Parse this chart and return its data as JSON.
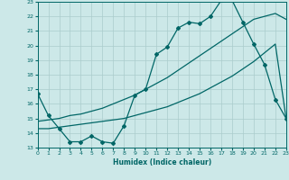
{
  "title": "",
  "xlabel": "Humidex (Indice chaleur)",
  "bg_color": "#cce8e8",
  "line_color": "#006666",
  "grid_color": "#aacccc",
  "ylim": [
    13,
    23
  ],
  "xlim": [
    0,
    23
  ],
  "yticks": [
    13,
    14,
    15,
    16,
    17,
    18,
    19,
    20,
    21,
    22,
    23
  ],
  "xticks": [
    0,
    1,
    2,
    3,
    4,
    5,
    6,
    7,
    8,
    9,
    10,
    11,
    12,
    13,
    14,
    15,
    16,
    17,
    18,
    19,
    20,
    21,
    22,
    23
  ],
  "line1_x": [
    0,
    1,
    2,
    3,
    4,
    5,
    6,
    7,
    8,
    9,
    10,
    11,
    12,
    13,
    14,
    15,
    16,
    17,
    18,
    19,
    20,
    21,
    22,
    23
  ],
  "line1_y": [
    16.7,
    15.2,
    14.3,
    13.4,
    13.4,
    13.8,
    13.4,
    13.3,
    14.5,
    16.6,
    17.0,
    19.4,
    19.9,
    21.2,
    21.6,
    21.5,
    22.0,
    23.1,
    23.1,
    21.6,
    20.1,
    18.7,
    16.3,
    15.0
  ],
  "line2_x": [
    0,
    1,
    2,
    3,
    4,
    5,
    6,
    7,
    8,
    9,
    10,
    11,
    12,
    13,
    14,
    15,
    16,
    17,
    18,
    19,
    20,
    21,
    22,
    23
  ],
  "line2_y": [
    14.8,
    14.9,
    15.0,
    15.2,
    15.3,
    15.5,
    15.7,
    16.0,
    16.3,
    16.6,
    17.0,
    17.4,
    17.8,
    18.3,
    18.8,
    19.3,
    19.8,
    20.3,
    20.8,
    21.3,
    21.8,
    22.0,
    22.2,
    21.8
  ],
  "line3_x": [
    0,
    1,
    2,
    3,
    4,
    5,
    6,
    7,
    8,
    9,
    10,
    11,
    12,
    13,
    14,
    15,
    16,
    17,
    18,
    19,
    20,
    21,
    22,
    23
  ],
  "line3_y": [
    14.3,
    14.3,
    14.4,
    14.5,
    14.6,
    14.7,
    14.8,
    14.9,
    15.0,
    15.2,
    15.4,
    15.6,
    15.8,
    16.1,
    16.4,
    16.7,
    17.1,
    17.5,
    17.9,
    18.4,
    18.9,
    19.5,
    20.1,
    15.0
  ]
}
